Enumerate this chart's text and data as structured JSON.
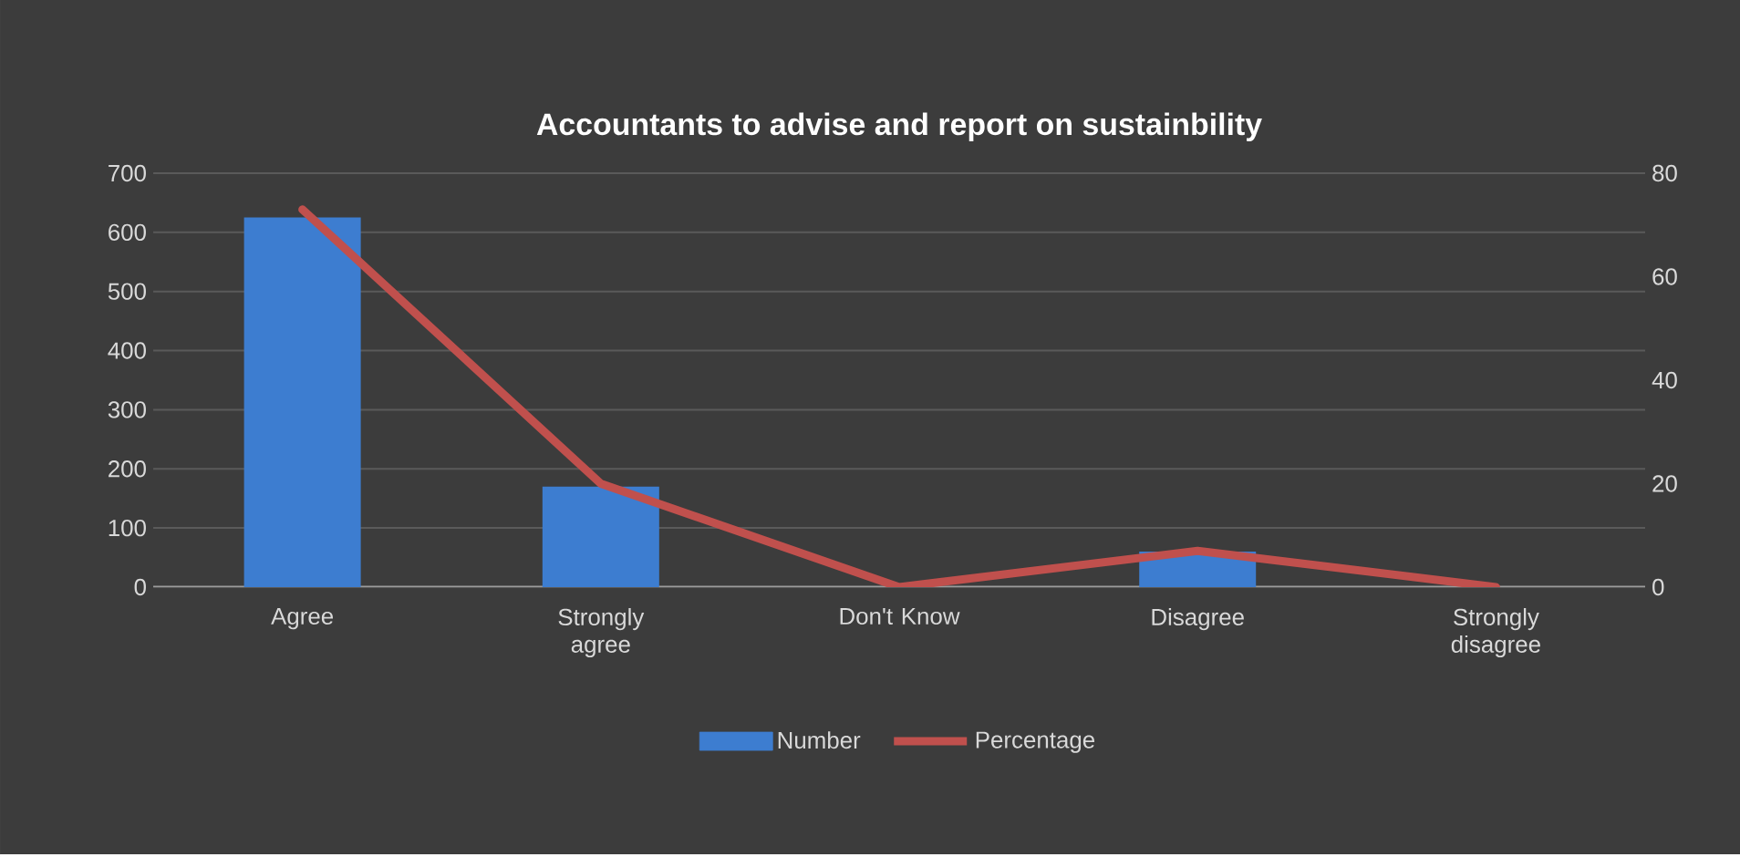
{
  "chart_data": {
    "type": "bar",
    "title": "Accountants to advise and report on sustainbility",
    "categories": [
      "Agree",
      "Strongly agree",
      "Don't Know",
      "Disagree",
      "Strongly disagree"
    ],
    "series": [
      {
        "name": "Number",
        "color": "#3d7dd0",
        "values": [
          625,
          170,
          0,
          60,
          0
        ]
      },
      {
        "name": "Percentage",
        "type": "line",
        "axis": "y2",
        "color": "#c0504d",
        "values": [
          73,
          20,
          0,
          7,
          0
        ]
      }
    ],
    "ylim": [
      0,
      700
    ],
    "yticks": [
      0,
      100,
      200,
      300,
      400,
      500,
      600,
      700
    ],
    "y2lim": [
      0,
      80
    ],
    "y2ticks": [
      0,
      20,
      40,
      60,
      80
    ],
    "grid": "y",
    "legend": "bottom",
    "marker": "none",
    "line_style": "solid"
  }
}
